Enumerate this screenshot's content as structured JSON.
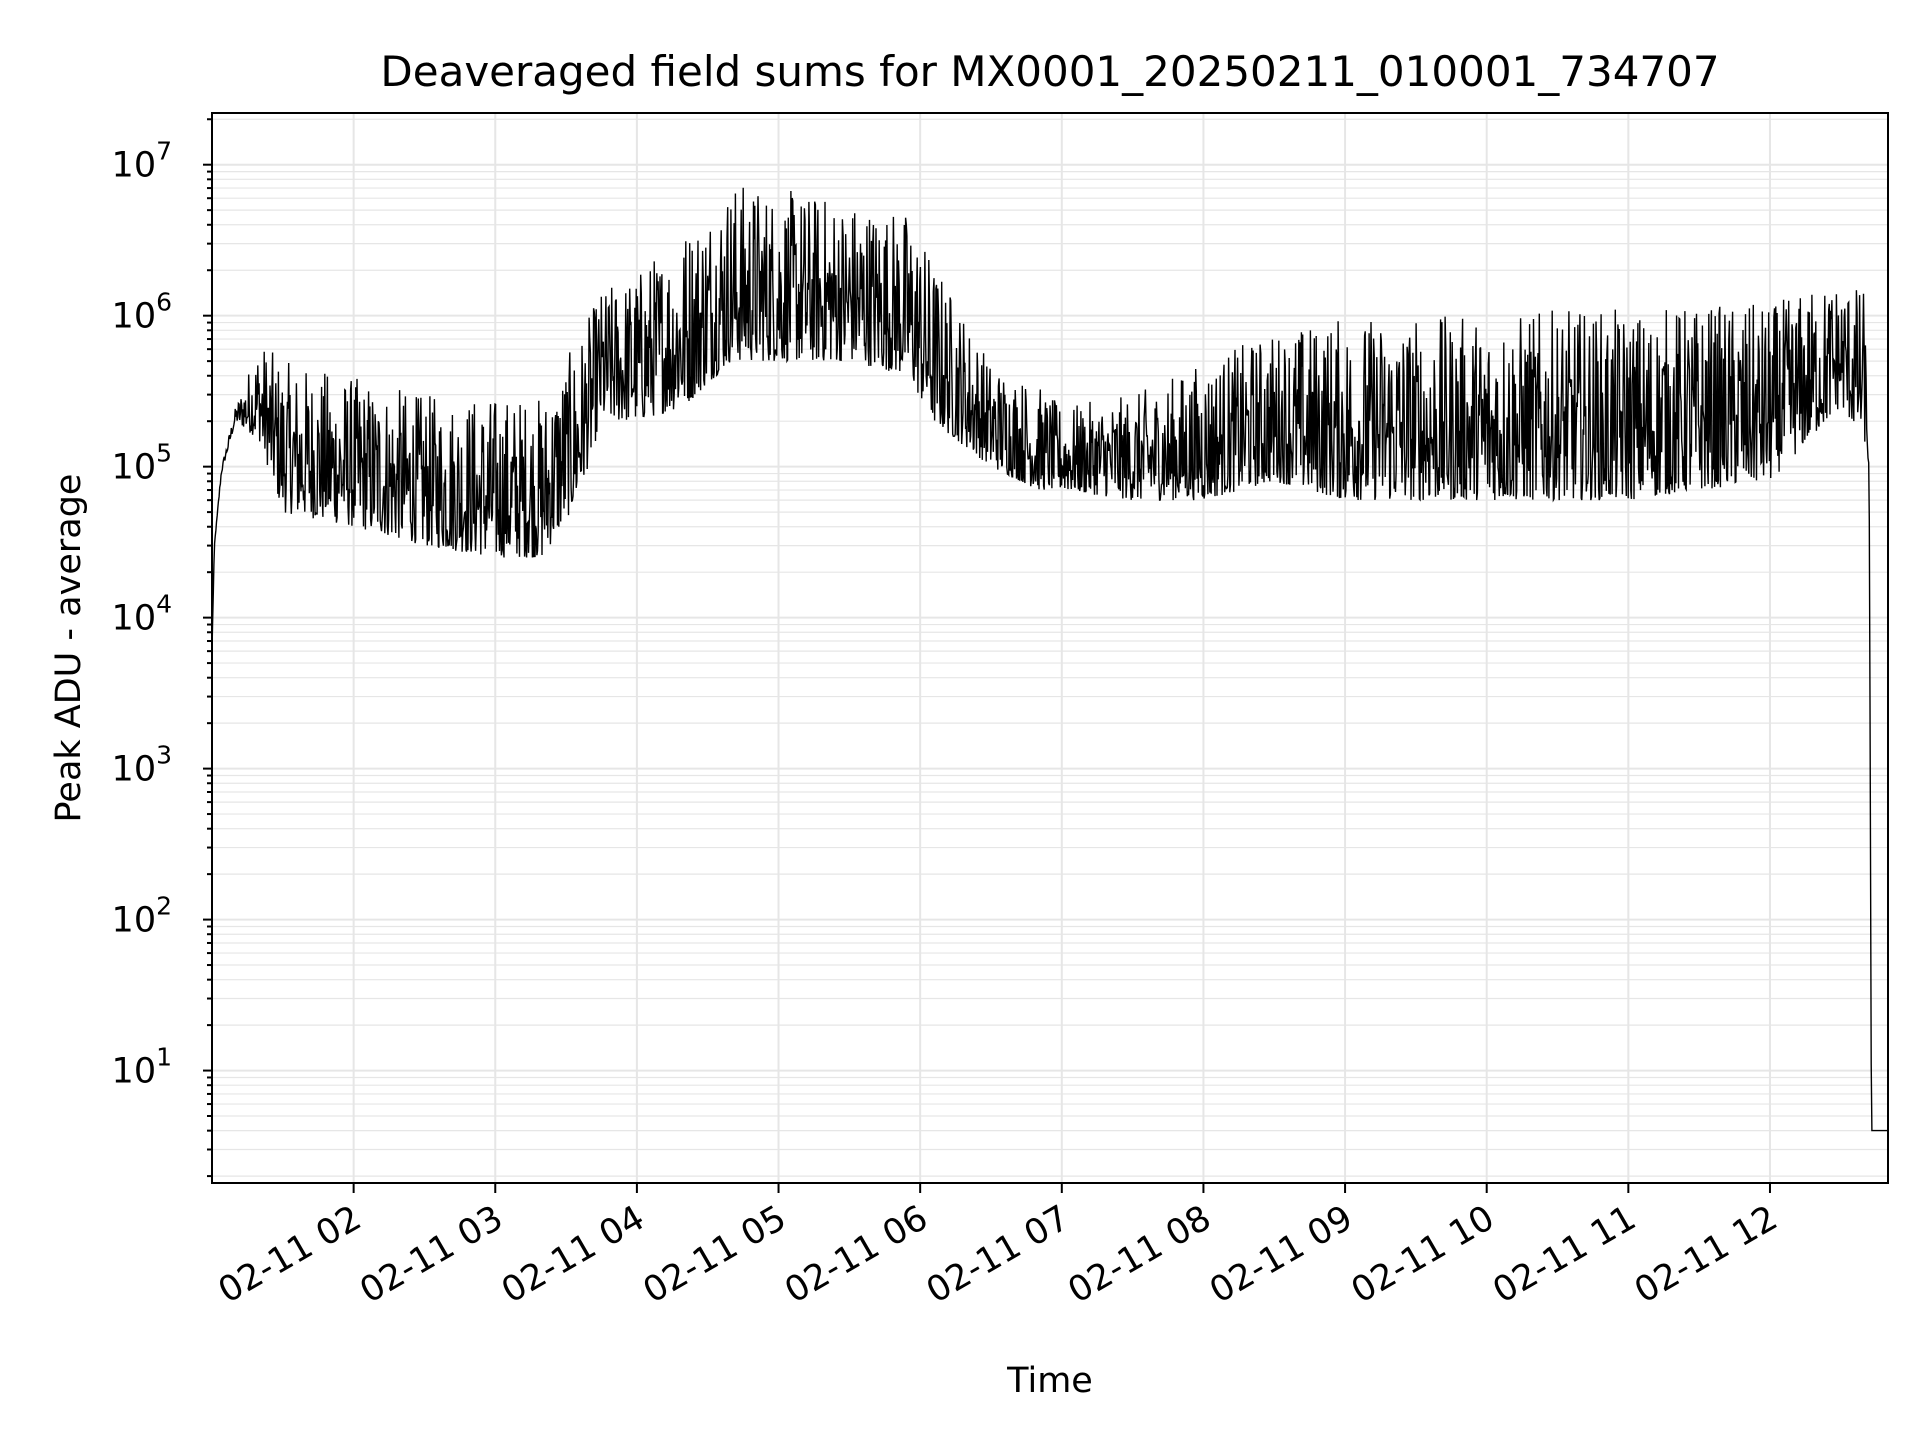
{
  "chart_data": {
    "type": "line",
    "title": "Deaveraged field sums for MX0001_20250211_010001_734707",
    "xlabel": "Time",
    "ylabel": "Peak ADU - average",
    "yscale": "log",
    "ylim": [
      1.8,
      22000000
    ],
    "xlim": [
      "2025-02-11 01:00",
      "2025-02-11 12:50"
    ],
    "grid": "on (major and minor)",
    "legend": "none",
    "line_color": "#000000",
    "grid_color": "#e6e6e6",
    "x_ticks": [
      "02-11 02",
      "02-11 03",
      "02-11 04",
      "02-11 05",
      "02-11 06",
      "02-11 07",
      "02-11 08",
      "02-11 09",
      "02-11 10",
      "02-11 11",
      "02-11 12"
    ],
    "x_tick_times": [
      "2025-02-11 02:00",
      "2025-02-11 03:00",
      "2025-02-11 04:00",
      "2025-02-11 05:00",
      "2025-02-11 06:00",
      "2025-02-11 07:00",
      "2025-02-11 08:00",
      "2025-02-11 09:00",
      "2025-02-11 10:00",
      "2025-02-11 11:00",
      "2025-02-11 12:00"
    ],
    "y_ticks": [
      {
        "value": 10,
        "base": "10",
        "exp": "1"
      },
      {
        "value": 100,
        "base": "10",
        "exp": "2"
      },
      {
        "value": 1000,
        "base": "10",
        "exp": "3"
      },
      {
        "value": 10000,
        "base": "10",
        "exp": "4"
      },
      {
        "value": 100000,
        "base": "10",
        "exp": "5"
      },
      {
        "value": 1000000,
        "base": "10",
        "exp": "6"
      },
      {
        "value": 10000000,
        "base": "10",
        "exp": "7"
      }
    ],
    "series": [
      {
        "envelope": {
          "x": [
            "2025-02-11 01:00",
            "2025-02-11 01:01",
            "2025-02-11 01:04",
            "2025-02-11 01:10",
            "2025-02-11 01:20",
            "2025-02-11 01:30",
            "2025-02-11 02:00",
            "2025-02-11 02:30",
            "2025-02-11 03:00",
            "2025-02-11 03:20",
            "2025-02-11 03:35",
            "2025-02-11 03:45",
            "2025-02-11 04:00",
            "2025-02-11 04:20",
            "2025-02-11 04:40",
            "2025-02-11 05:00",
            "2025-02-11 05:30",
            "2025-02-11 05:55",
            "2025-02-11 06:05",
            "2025-02-11 06:30",
            "2025-02-11 06:50",
            "2025-02-11 07:00",
            "2025-02-11 07:30",
            "2025-02-11 08:00",
            "2025-02-11 08:30",
            "2025-02-11 09:00",
            "2025-02-11 09:30",
            "2025-02-11 10:00",
            "2025-02-11 10:30",
            "2025-02-11 11:00",
            "2025-02-11 11:30",
            "2025-02-11 12:00",
            "2025-02-11 12:30",
            "2025-02-11 12:40",
            "2025-02-11 12:42",
            "2025-02-11 12:43",
            "2025-02-11 12:50"
          ],
          "low": [
            6000,
            30000,
            90000,
            200000,
            150000,
            50000,
            40000,
            30000,
            25000,
            25000,
            60000,
            200000,
            200000,
            250000,
            500000,
            500000,
            500000,
            400000,
            200000,
            100000,
            70000,
            70000,
            60000,
            60000,
            80000,
            60000,
            60000,
            60000,
            60000,
            60000,
            70000,
            80000,
            250000,
            150000,
            100000,
            4,
            4
          ],
          "high": [
            6000,
            30000,
            100000,
            250000,
            700000,
            500000,
            400000,
            300000,
            300000,
            300000,
            700000,
            1500000,
            2000000,
            4000000,
            8000000,
            7000000,
            6000000,
            5000000,
            2500000,
            500000,
            350000,
            250000,
            300000,
            500000,
            800000,
            1000000,
            1000000,
            1000000,
            1100000,
            1100000,
            1200000,
            1200000,
            1800000,
            1500000,
            100000,
            4,
            4
          ]
        }
      }
    ]
  }
}
